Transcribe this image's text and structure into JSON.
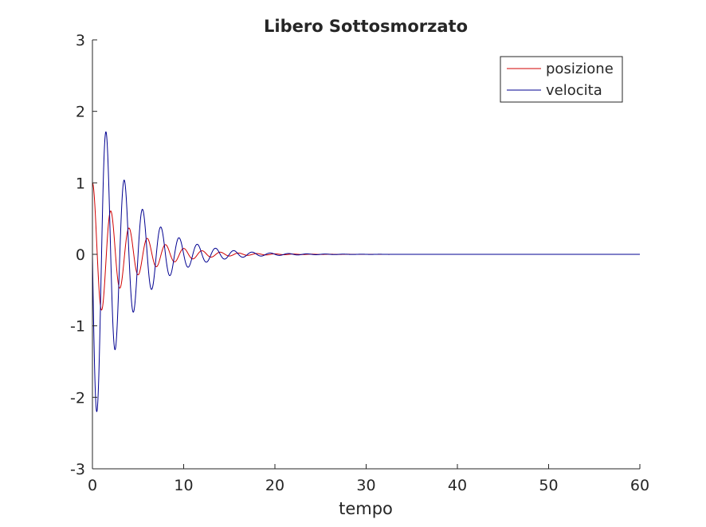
{
  "chart_data": {
    "type": "line",
    "title": "Libero Sottosmorzato",
    "xlabel": "tempo",
    "ylabel": "",
    "xlim": [
      0,
      60
    ],
    "ylim": [
      -3,
      3
    ],
    "xticks": [
      "0",
      "10",
      "20",
      "30",
      "40",
      "50",
      "60"
    ],
    "yticks": [
      "3",
      "2",
      "1",
      "0",
      "-1",
      "-2",
      "-3"
    ],
    "grid": false,
    "legend_position": "top-right",
    "x_range_sampled": [
      0,
      60
    ],
    "series": [
      {
        "name": "posizione",
        "color": "#d00000",
        "decay_rate": 0.25,
        "angular_frequency": 3.14,
        "initial_value": 1.0
      },
      {
        "name": "velocita",
        "color": "#000090",
        "decay_rate": 0.25,
        "angular_frequency": 3.14,
        "peak_magnitude": 2.2
      }
    ]
  }
}
